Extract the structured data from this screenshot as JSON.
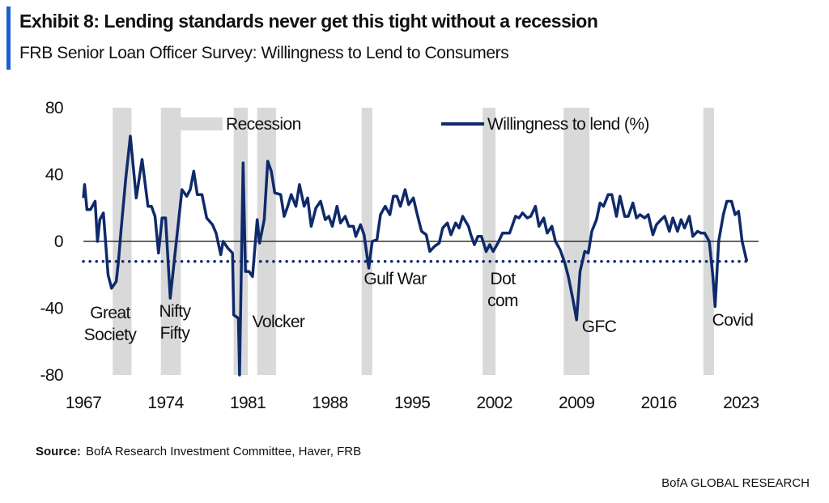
{
  "chart_data": {
    "type": "line",
    "title": "Exhibit 8: Lending standards never get this tight without a recession",
    "subtitle": "FRB Senior Loan Officer Survey: Willingness to Lend to Consumers",
    "source_label": "Source:",
    "source": "BofA Research Investment Committee, Haver, FRB",
    "footer": "BofA GLOBAL RESEARCH",
    "xlim": [
      1967,
      2024.5
    ],
    "xticks": [
      1967,
      1974,
      1981,
      1988,
      1995,
      2002,
      2009,
      2016,
      2023
    ],
    "ylim": [
      -80,
      80
    ],
    "yticks": [
      -80,
      -40,
      0,
      40,
      80
    ],
    "reference_line": -12,
    "recession_label": "Recession",
    "recession_color": "#d9d9d9",
    "recessions": [
      [
        1969.5,
        1971.1
      ],
      [
        1973.6,
        1975.3
      ],
      [
        1979.8,
        1981.0
      ],
      [
        1981.8,
        1983.4
      ],
      [
        1990.7,
        1991.6
      ],
      [
        2001.0,
        2002.1
      ],
      [
        2007.9,
        2010.1
      ],
      [
        2019.8,
        2020.7
      ]
    ],
    "annotations": [
      {
        "lines": [
          "Great",
          "Society"
        ]
      },
      {
        "lines": [
          "Nifty",
          "Fifty"
        ]
      },
      {
        "lines": [
          "Volcker"
        ]
      },
      {
        "lines": [
          "Gulf War"
        ]
      },
      {
        "lines": [
          "Dot",
          "com"
        ]
      },
      {
        "lines": [
          "GFC"
        ]
      },
      {
        "lines": [
          "Covid"
        ]
      }
    ],
    "series": [
      {
        "name": "Willingness to lend (%)",
        "color": "#0f2a6b",
        "x": [
          1967.0,
          1967.1,
          1967.3,
          1967.6,
          1968.0,
          1968.2,
          1968.4,
          1968.7,
          1969.1,
          1969.4,
          1969.8,
          1970.0,
          1970.2,
          1970.6,
          1971.0,
          1971.5,
          1972.0,
          1972.5,
          1972.8,
          1973.1,
          1973.4,
          1973.7,
          1974.0,
          1974.4,
          1974.9,
          1975.4,
          1975.8,
          1976.1,
          1976.4,
          1976.7,
          1977.1,
          1977.5,
          1978.0,
          1978.3,
          1978.7,
          1978.9,
          1979.3,
          1979.7,
          1979.8,
          1980.2,
          1980.3,
          1980.6,
          1980.8,
          1981.1,
          1981.4,
          1981.8,
          1982.0,
          1982.4,
          1982.7,
          1983.0,
          1983.3,
          1983.8,
          1984.1,
          1984.4,
          1984.7,
          1985.1,
          1985.4,
          1985.8,
          1986.1,
          1986.4,
          1986.8,
          1987.2,
          1987.6,
          1987.9,
          1988.2,
          1988.6,
          1988.9,
          1989.3,
          1989.6,
          1990.0,
          1990.2,
          1990.6,
          1990.9,
          1991.3,
          1991.6,
          1992.0,
          1992.3,
          1992.7,
          1993.1,
          1993.4,
          1993.7,
          1994.0,
          1994.4,
          1994.7,
          1995.1,
          1995.4,
          1995.8,
          1996.2,
          1996.5,
          1996.9,
          1997.3,
          1997.6,
          1998.0,
          1998.3,
          1998.7,
          1999.0,
          1999.3,
          1999.8,
          2000.0,
          2000.3,
          2000.6,
          2000.9,
          2001.3,
          2001.6,
          2001.9,
          2002.3,
          2002.7,
          2003.0,
          2003.3,
          2003.8,
          2004.1,
          2004.4,
          2004.8,
          2005.1,
          2005.5,
          2005.8,
          2006.2,
          2006.5,
          2006.9,
          2007.2,
          2007.6,
          2008.0,
          2008.3,
          2008.7,
          2009.0,
          2009.3,
          2009.7,
          2010.0,
          2010.3,
          2010.7,
          2011.0,
          2011.3,
          2011.7,
          2012.0,
          2012.4,
          2012.7,
          2013.1,
          2013.4,
          2013.8,
          2014.1,
          2014.4,
          2014.8,
          2015.1,
          2015.5,
          2015.8,
          2016.2,
          2016.5,
          2016.9,
          2017.2,
          2017.6,
          2017.9,
          2018.2,
          2018.6,
          2018.9,
          2019.3,
          2019.6,
          2019.9,
          2020.3,
          2020.6,
          2020.8,
          2021.1,
          2021.5,
          2021.8,
          2022.2,
          2022.5,
          2022.8,
          2023.1,
          2023.5
        ],
        "values": [
          26,
          34,
          19,
          19,
          24,
          0,
          13,
          17,
          -20,
          -28,
          -24,
          -11,
          6,
          37,
          63,
          26,
          49,
          21,
          21,
          15,
          -7,
          14,
          14,
          -34,
          -1,
          31,
          27,
          31,
          42,
          28,
          28,
          14,
          10,
          5,
          -8,
          0,
          -4,
          -7,
          -44,
          -46,
          -80,
          47,
          -18,
          -18,
          -21,
          13,
          -1,
          13,
          48,
          42,
          29,
          28,
          15,
          21,
          28,
          21,
          34,
          21,
          26,
          9,
          20,
          24,
          13,
          15,
          9,
          21,
          11,
          15,
          9,
          9,
          3,
          10,
          4,
          -16,
          0,
          1,
          16,
          21,
          16,
          27,
          27,
          21,
          31,
          22,
          26,
          17,
          6,
          4,
          -6,
          -3,
          -1,
          8,
          11,
          4,
          11,
          8,
          15,
          9,
          4,
          -2,
          3,
          3,
          -6,
          -2,
          -6,
          -1,
          5,
          5,
          5,
          15,
          14,
          17,
          14,
          15,
          21,
          9,
          14,
          5,
          9,
          0,
          -5,
          -13,
          -21,
          -35,
          -47,
          -18,
          -6,
          -7,
          6,
          13,
          23,
          21,
          28,
          28,
          15,
          27,
          15,
          15,
          23,
          14,
          16,
          14,
          16,
          4,
          10,
          13,
          15,
          6,
          14,
          6,
          13,
          8,
          15,
          3,
          6,
          5,
          5,
          0,
          -20,
          -39,
          0,
          16,
          24,
          24,
          16,
          18,
          0,
          -12
        ]
      }
    ]
  }
}
